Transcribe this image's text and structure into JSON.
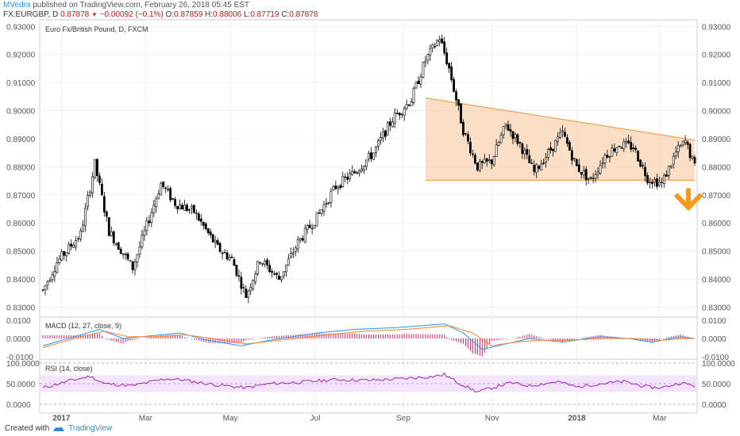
{
  "header": {
    "author": "MVedra",
    "published_text": "published on TradingView.com, February 26, 2018 05:45 EST",
    "symbol": "FX:EURGBP, D",
    "last_price": "0.87878",
    "change": "−0.00092 (−0.1%)",
    "open_label": "O:",
    "open": "0.87859",
    "high_label": "H:",
    "high": "0.88006",
    "low_label": "L:",
    "low": "0.87719",
    "close_label": "C:",
    "close": "0.87878"
  },
  "footer": {
    "created_with": "Created with",
    "brand": "TradingView"
  },
  "colors": {
    "up": "#ffffff",
    "down": "#000000",
    "grid": "#eceff2",
    "triangle_fill": "#f7c9a0",
    "triangle_line": "#f0a050",
    "arrow": "#f59a1c",
    "macd": "#2196f3",
    "signal": "#ff7f27",
    "hist": "#e91e63",
    "rsi": "#9c27b0",
    "rsi_band": "#f3e3fb"
  },
  "chart_data": [
    {
      "type": "candlestick",
      "title": "Euro Fx/British Pound, D, FXCM",
      "ylim": [
        0.827,
        0.9315
      ],
      "yticks": [
        "0.83000",
        "0.84000",
        "0.85000",
        "0.86000",
        "0.87000",
        "0.88000",
        "0.89000",
        "0.90000",
        "0.91000",
        "0.92000",
        "0.93000"
      ],
      "xticks": [
        "2017",
        "Mar",
        "May",
        "Jul",
        "Sep",
        "Nov",
        "2018",
        "Mar"
      ],
      "price_path": [
        [
          0,
          0.836
        ],
        [
          6,
          0.846
        ],
        [
          16,
          0.856
        ],
        [
          22,
          0.881
        ],
        [
          28,
          0.857
        ],
        [
          38,
          0.844
        ],
        [
          50,
          0.874
        ],
        [
          56,
          0.867
        ],
        [
          64,
          0.864
        ],
        [
          74,
          0.851
        ],
        [
          80,
          0.847
        ],
        [
          86,
          0.834
        ],
        [
          92,
          0.847
        ],
        [
          100,
          0.84
        ],
        [
          108,
          0.853
        ],
        [
          116,
          0.862
        ],
        [
          124,
          0.873
        ],
        [
          132,
          0.878
        ],
        [
          140,
          0.885
        ],
        [
          148,
          0.897
        ],
        [
          156,
          0.904
        ],
        [
          162,
          0.918
        ],
        [
          168,
          0.926
        ],
        [
          172,
          0.915
        ],
        [
          178,
          0.893
        ],
        [
          184,
          0.88
        ],
        [
          190,
          0.882
        ],
        [
          196,
          0.895
        ],
        [
          202,
          0.888
        ],
        [
          208,
          0.878
        ],
        [
          214,
          0.885
        ],
        [
          220,
          0.892
        ],
        [
          226,
          0.88
        ],
        [
          232,
          0.875
        ],
        [
          238,
          0.884
        ],
        [
          244,
          0.888
        ],
        [
          250,
          0.887
        ],
        [
          256,
          0.876
        ],
        [
          262,
          0.874
        ],
        [
          268,
          0.885
        ],
        [
          272,
          0.889
        ],
        [
          276,
          0.88
        ]
      ],
      "candle_count": 277,
      "triangle": {
        "upper": [
          [
            162,
            0.9045
          ],
          [
            276,
            0.8895
          ]
        ],
        "lower": [
          [
            162,
            0.8752
          ],
          [
            276,
            0.8752
          ]
        ],
        "arrow_at": [
          0.8695,
          0.866
        ]
      }
    },
    {
      "type": "line",
      "title": "MACD (12, 27, close, 9)",
      "ylim": [
        -0.01,
        0.01
      ],
      "yticks": [
        "0.0100",
        "0.0000",
        "-0.0100"
      ],
      "series": [
        {
          "name": "MACD",
          "path": [
            [
              0,
              -0.004
            ],
            [
              16,
              0.002
            ],
            [
              24,
              0.005
            ],
            [
              34,
              0.0
            ],
            [
              50,
              0.002
            ],
            [
              58,
              0.003
            ],
            [
              70,
              -0.001
            ],
            [
              84,
              -0.004
            ],
            [
              96,
              -0.001
            ],
            [
              116,
              0.003
            ],
            [
              132,
              0.005
            ],
            [
              150,
              0.006
            ],
            [
              170,
              0.008
            ],
            [
              178,
              0.003
            ],
            [
              186,
              -0.006
            ],
            [
              196,
              -0.003
            ],
            [
              206,
              0.0
            ],
            [
              220,
              -0.002
            ],
            [
              236,
              0.001
            ],
            [
              248,
              0.0
            ],
            [
              258,
              -0.002
            ],
            [
              270,
              0.001
            ],
            [
              276,
              0.0
            ]
          ]
        },
        {
          "name": "Signal",
          "path": [
            [
              0,
              -0.005
            ],
            [
              16,
              0.001
            ],
            [
              26,
              0.004
            ],
            [
              36,
              0.001
            ],
            [
              50,
              0.001
            ],
            [
              60,
              0.002
            ],
            [
              72,
              0.0
            ],
            [
              86,
              -0.003
            ],
            [
              100,
              -0.001
            ],
            [
              120,
              0.002
            ],
            [
              136,
              0.004
            ],
            [
              154,
              0.005
            ],
            [
              172,
              0.007
            ],
            [
              182,
              0.003
            ],
            [
              190,
              -0.004
            ],
            [
              200,
              -0.002
            ],
            [
              210,
              -0.001
            ],
            [
              222,
              -0.001
            ],
            [
              238,
              0.0
            ],
            [
              250,
              0.0
            ],
            [
              262,
              -0.001
            ],
            [
              272,
              0.0
            ],
            [
              276,
              0.0
            ]
          ]
        }
      ]
    },
    {
      "type": "line",
      "title": "RSI (14, close)",
      "ylim": [
        0,
        100
      ],
      "yticks": [
        "100.0000",
        "50.0000",
        "0.0000"
      ],
      "band": [
        30,
        70
      ],
      "series": [
        {
          "name": "RSI",
          "path": [
            [
              0,
              40
            ],
            [
              10,
              55
            ],
            [
              20,
              68
            ],
            [
              26,
              50
            ],
            [
              38,
              45
            ],
            [
              52,
              62
            ],
            [
              58,
              60
            ],
            [
              72,
              48
            ],
            [
              86,
              40
            ],
            [
              96,
              50
            ],
            [
              110,
              54
            ],
            [
              124,
              60
            ],
            [
              138,
              58
            ],
            [
              152,
              62
            ],
            [
              166,
              68
            ],
            [
              170,
              72
            ],
            [
              176,
              52
            ],
            [
              184,
              30
            ],
            [
              190,
              40
            ],
            [
              198,
              52
            ],
            [
              206,
              45
            ],
            [
              218,
              55
            ],
            [
              226,
              42
            ],
            [
              236,
              50
            ],
            [
              246,
              55
            ],
            [
              256,
              42
            ],
            [
              262,
              40
            ],
            [
              270,
              52
            ],
            [
              276,
              45
            ]
          ]
        }
      ]
    }
  ]
}
